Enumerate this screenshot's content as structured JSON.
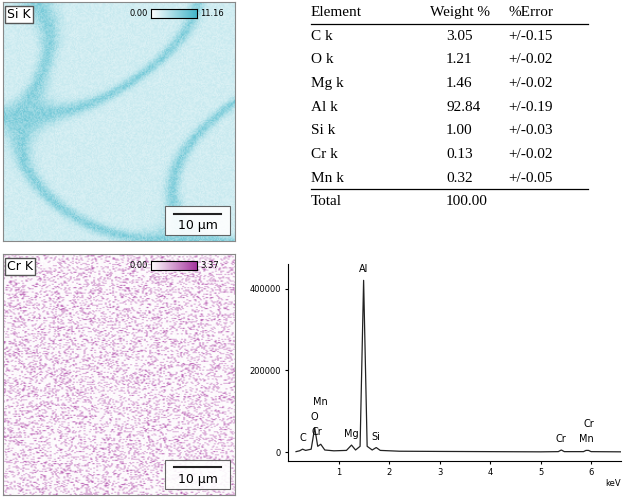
{
  "maps": [
    {
      "title": "Si K",
      "color": "#3fb4c8",
      "colorbar": {
        "range": [
          0,
          11.16
        ],
        "ticks": [
          {
            "value": 0,
            "label": "0.00"
          },
          11.16
        ]
      },
      "scale_bar": "10 µm"
    },
    {
      "title": "Cr K",
      "color": "#a3309c",
      "colorbar": {
        "range": [
          0,
          3.37
        ],
        "ticks": [
          {
            "value": 0,
            "label": "0.00"
          },
          3.37
        ]
      },
      "scale_bar": "10 µm"
    }
  ],
  "table": {
    "header": [
      "Element",
      "Weight %",
      "%Error"
    ],
    "rows": [
      [
        "C k",
        "3.05",
        "+/-0.15"
      ],
      [
        "O k",
        "1.21",
        "+/-0.02"
      ],
      [
        "Mg k",
        "1.46",
        "+/-0.02"
      ],
      [
        "Al k",
        "92.84",
        "+/-0.19"
      ],
      [
        "Si k",
        "1.00",
        "+/-0.03"
      ],
      [
        "Cr k",
        "0.13",
        "+/-0.02"
      ],
      [
        "Mn k",
        "0.32",
        "+/-0.05"
      ]
    ],
    "total": [
      "Total",
      "100.00"
    ]
  },
  "chart_data": {
    "type": "line",
    "color": "#222222",
    "x": [
      0.15,
      0.22,
      0.28,
      0.34,
      0.45,
      0.52,
      0.58,
      0.64,
      0.72,
      0.9,
      1.15,
      1.25,
      1.33,
      1.42,
      1.49,
      1.56,
      1.66,
      1.74,
      1.82,
      2.2,
      3.0,
      4.0,
      5.0,
      5.35,
      5.41,
      5.47,
      5.85,
      5.9,
      5.95,
      6.0,
      6.6
    ],
    "values": [
      2000,
      4000,
      8000,
      5000,
      8000,
      60000,
      15000,
      20000,
      6000,
      4000,
      5000,
      18000,
      6000,
      15000,
      420000,
      15000,
      6000,
      12000,
      5000,
      3000,
      2500,
      2000,
      1500,
      2000,
      6000,
      2000,
      2000,
      5000,
      5000,
      2000,
      1500
    ],
    "xlim": [
      0,
      6.6
    ],
    "xticks": [
      1,
      2,
      3,
      4,
      5,
      6
    ],
    "ylim": [
      -20000,
      460000
    ],
    "yticks": [
      0,
      200000,
      400000
    ],
    "x_label": "keV",
    "peak_labels": [
      {
        "label": "C",
        "x": 0.28
      },
      {
        "label": "O",
        "x": 0.52
      },
      {
        "label": "Cr",
        "x": 0.57
      },
      {
        "label": "Mn",
        "x": 0.64
      },
      {
        "label": "Mg",
        "x": 1.25
      },
      {
        "label": "Al",
        "x": 1.49
      },
      {
        "label": "Si",
        "x": 1.74
      },
      {
        "label": "Cr",
        "x": 5.41
      },
      {
        "label": "Mn",
        "x": 5.9
      },
      {
        "label": "Cr",
        "x": 5.95
      }
    ]
  }
}
